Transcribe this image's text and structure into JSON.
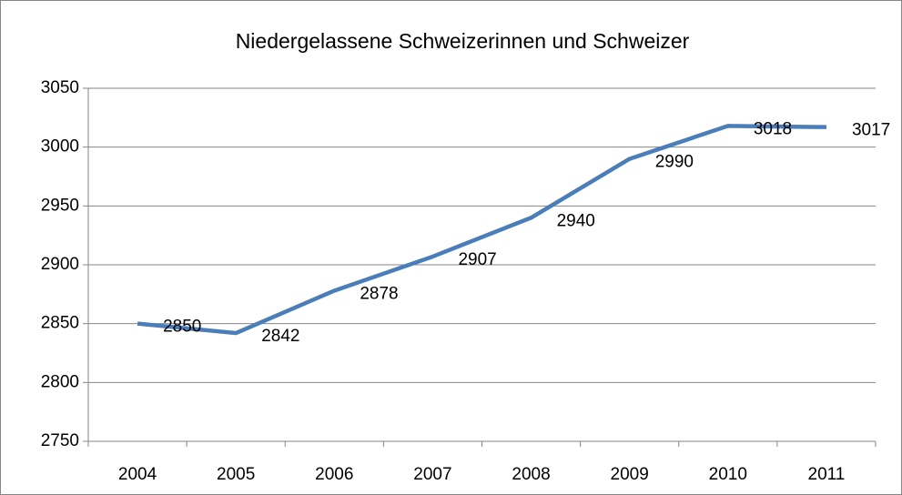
{
  "chart_data": {
    "type": "line",
    "title": "Niedergelassene Schweizerinnen und Schweizer",
    "categories": [
      "2004",
      "2005",
      "2006",
      "2007",
      "2008",
      "2009",
      "2010",
      "2011"
    ],
    "series": [
      {
        "name": "Niedergelassene Schweizerinnen und Schweizer",
        "color": "#4a7ebb",
        "values": [
          2850,
          2842,
          2878,
          2907,
          2940,
          2990,
          3018,
          3017
        ]
      }
    ],
    "ylim": [
      2750,
      3050
    ],
    "yticks": [
      2750,
      2800,
      2850,
      2900,
      2950,
      3000,
      3050
    ],
    "grid": true,
    "data_labels": true
  }
}
